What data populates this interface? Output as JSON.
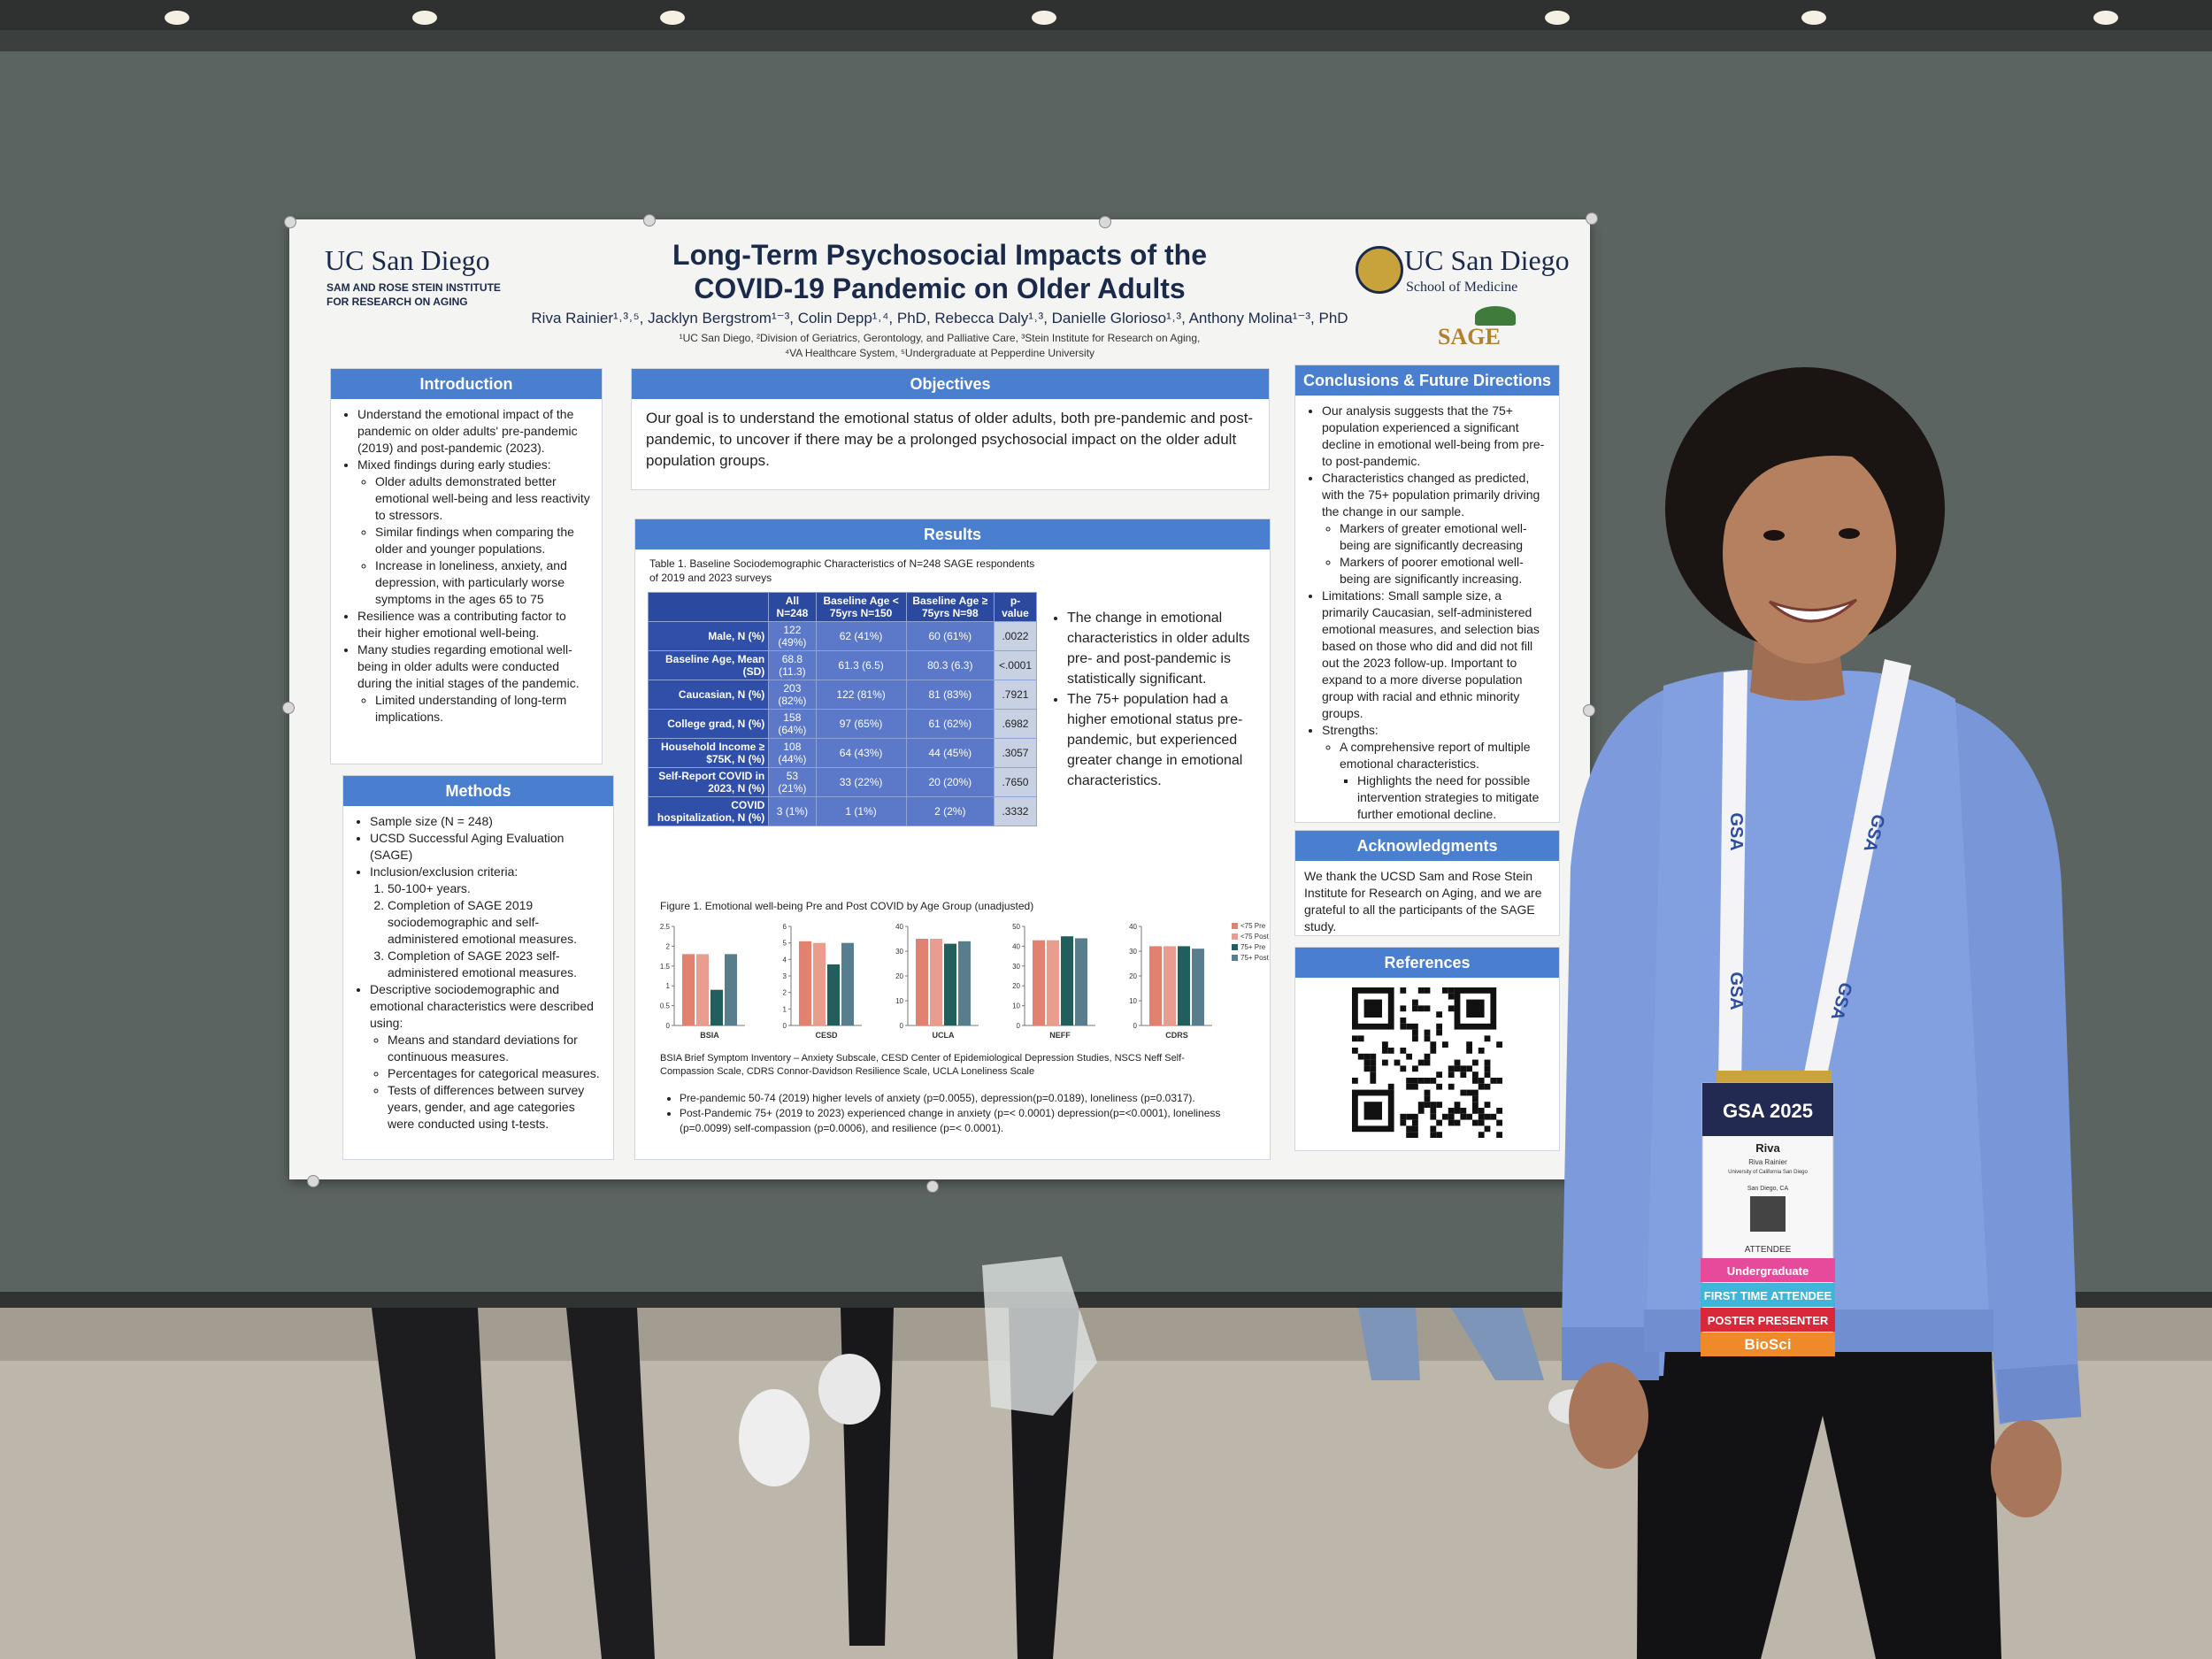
{
  "poster": {
    "logo_left": {
      "name": "UC San Diego",
      "line1": "SAM AND ROSE STEIN INSTITUTE",
      "line2": "FOR RESEARCH ON AGING"
    },
    "logo_right": {
      "name": "UC San Diego",
      "school": "School of Medicine",
      "sage": "SAGE"
    },
    "title_line1": "Long-Term Psychosocial Impacts of the",
    "title_line2": "COVID-19 Pandemic on Older Adults",
    "authors": "Riva Rainier¹˒³˒⁵, Jacklyn Bergstrom¹⁻³, Colin Depp¹˒⁴, PhD, Rebecca Daly¹˒³, Danielle Glorioso¹˒³, Anthony Molina¹⁻³, PhD",
    "affiliations1": "¹UC San Diego, ²Division of Geriatrics, Gerontology, and Palliative Care, ³Stein Institute for Research on Aging,",
    "affiliations2": "⁴VA Healthcare System, ⁵Undergraduate at Pepperdine University",
    "introduction": {
      "heading": "Introduction",
      "items": [
        {
          "text": "Understand the emotional impact of the pandemic on older adults' pre-pandemic (2019) and post-pandemic (2023)."
        },
        {
          "text": "Mixed findings during early studies:",
          "sub": [
            {
              "text": "Older adults demonstrated better emotional well-being and less reactivity to stressors."
            },
            {
              "text": "Similar findings when comparing the older and younger populations."
            },
            {
              "text": "Increase in loneliness, anxiety, and depression, with particularly worse symptoms in the ages 65 to 75"
            }
          ]
        },
        {
          "text": "Resilience was a contributing factor to their higher emotional well-being."
        },
        {
          "text": "Many studies regarding emotional well-being in older adults were conducted during the initial stages of the pandemic.",
          "sub": [
            {
              "text": "Limited understanding of long-term implications."
            }
          ]
        }
      ]
    },
    "methods": {
      "heading": "Methods",
      "items": [
        {
          "text": "Sample size (N = 248)"
        },
        {
          "text": "UCSD Successful Aging Evaluation (SAGE)"
        },
        {
          "text": "Inclusion/exclusion criteria:",
          "numbered": true,
          "sub": [
            {
              "text": "50-100+ years."
            },
            {
              "text": "Completion of SAGE 2019 sociodemographic and self-administered emotional measures."
            },
            {
              "text": "Completion of SAGE 2023 self-administered emotional measures."
            }
          ]
        },
        {
          "text": "Descriptive sociodemographic and emotional characteristics were described using:",
          "sub": [
            {
              "text": "Means and standard deviations for continuous measures."
            },
            {
              "text": "Percentages for categorical measures."
            },
            {
              "text": "Tests of differences between survey years, gender, and age categories were conducted using t-tests."
            }
          ]
        }
      ]
    },
    "objectives": {
      "heading": "Objectives",
      "text": "Our goal is to understand the emotional status of older adults, both pre-pandemic and post-pandemic, to uncover if there may be a prolonged psychosocial impact on the older adult population groups."
    },
    "results": {
      "heading": "Results",
      "table_caption": "Table 1. Baseline Sociodemographic Characteristics of N=248 SAGE respondents of 2019 and 2023 surveys",
      "table": {
        "header": [
          "",
          "All N=248",
          "Baseline Age < 75yrs N=150",
          "Baseline Age ≥ 75yrs N=98",
          "p-value"
        ],
        "rows": [
          [
            "Male, N (%)",
            "122 (49%)",
            "62 (41%)",
            "60 (61%)",
            ".0022"
          ],
          [
            "Baseline Age, Mean (SD)",
            "68.8 (11.3)",
            "61.3 (6.5)",
            "80.3 (6.3)",
            "<.0001"
          ],
          [
            "Caucasian, N (%)",
            "203 (82%)",
            "122 (81%)",
            "81 (83%)",
            ".7921"
          ],
          [
            "College grad, N (%)",
            "158 (64%)",
            "97 (65%)",
            "61 (62%)",
            ".6982"
          ],
          [
            "Household Income ≥ $75K, N (%)",
            "108 (44%)",
            "64 (43%)",
            "44 (45%)",
            ".3057"
          ],
          [
            "Self-Report COVID in 2023, N (%)",
            "53 (21%)",
            "33 (22%)",
            "20 (20%)",
            ".7650"
          ],
          [
            "COVID hospitalization, N (%)",
            "3 (1%)",
            "1 (1%)",
            "2 (2%)",
            ".3332"
          ]
        ]
      },
      "side_points": [
        "The change in emotional characteristics in older adults pre- and post-pandemic is statistically significant.",
        "The 75+ population had a higher emotional status pre-pandemic, but experienced greater change in emotional characteristics."
      ],
      "figure_caption": "Figure 1. Emotional well-being Pre and Post COVID by Age Group (unadjusted)",
      "figure": {
        "type": "bar",
        "series": [
          {
            "name": "<75 Pre",
            "color": "#e0826f"
          },
          {
            "name": "<75 Post",
            "color": "#e99d8e"
          },
          {
            "name": "75+ Pre",
            "color": "#215e5c"
          },
          {
            "name": "75+ Post",
            "color": "#587d8c"
          }
        ],
        "panels": [
          {
            "label": "BSIA",
            "ylim": [
              0,
              2.5
            ],
            "yticks": [
              0,
              0.5,
              1,
              1.5,
              2,
              2.5
            ],
            "values": [
              1.8,
              1.8,
              0.9,
              1.8
            ]
          },
          {
            "label": "CESD",
            "ylim": [
              0,
              6
            ],
            "yticks": [
              0,
              1,
              2,
              3,
              4,
              5,
              6
            ],
            "values": [
              5.1,
              5.0,
              3.7,
              5.0
            ]
          },
          {
            "label": "UCLA",
            "ylim": [
              0,
              40
            ],
            "yticks": [
              0,
              10,
              20,
              30,
              40
            ],
            "values": [
              35,
              35,
              33,
              34
            ]
          },
          {
            "label": "NEFF",
            "ylim": [
              0,
              50
            ],
            "yticks": [
              0,
              10,
              20,
              30,
              40,
              50
            ],
            "values": [
              43,
              43,
              45,
              44
            ]
          },
          {
            "label": "CDRS",
            "ylim": [
              0,
              40
            ],
            "yticks": [
              0,
              10,
              20,
              30,
              40
            ],
            "values": [
              32,
              32,
              32,
              31
            ]
          }
        ]
      },
      "abbreviations": "BSIA Brief Symptom Inventory – Anxiety Subscale, CESD Center of Epidemiological Depression Studies, NSCS Neff Self-Compassion Scale, CDRS Connor-Davidson Resilience Scale, UCLA Loneliness Scale",
      "findings": [
        "Pre-pandemic 50-74 (2019) higher levels of anxiety (p=0.0055), depression(p=0.0189), loneliness (p=0.0317).",
        "Post-Pandemic 75+ (2019 to 2023) experienced change in anxiety (p=< 0.0001) depression(p=<0.0001), loneliness (p=0.0099) self-compassion (p=0.0006), and resilience (p=< 0.0001)."
      ]
    },
    "conclusions": {
      "heading": "Conclusions & Future Directions",
      "items": [
        {
          "text": "Our analysis suggests that the 75+ population experienced a significant decline in emotional well-being from pre- to post-pandemic."
        },
        {
          "text": "Characteristics changed as predicted, with the 75+ population primarily driving the change in our sample.",
          "sub": [
            {
              "text": "Markers of greater emotional well-being are significantly decreasing"
            },
            {
              "text": "Markers of poorer emotional well-being are significantly increasing."
            }
          ]
        },
        {
          "text": "Limitations: Small sample size, a primarily Caucasian, self-administered emotional measures, and selection bias based on those who did and did not fill out the 2023 follow-up. Important to expand to a more diverse population group with racial and ethnic minority groups."
        },
        {
          "text": "Strengths:",
          "sub": [
            {
              "text": "A comprehensive report of multiple emotional characteristics.",
              "sub": [
                {
                  "text": "Highlights the need for possible intervention strategies to mitigate further emotional decline."
                }
              ]
            }
          ]
        }
      ]
    },
    "acknowledgments": {
      "heading": "Acknowledgments",
      "text": "We thank the UCSD Sam and Rose Stein Institute for Research on Aging, and we are grateful to all the participants of the SAGE study."
    },
    "references": {
      "heading": "References"
    }
  },
  "badge": {
    "event": "GSA 2025",
    "first_name": "Riva",
    "full_name": "Riva Rainier",
    "institution": "University of California San Diego",
    "location": "San Diego, CA",
    "role": "ATTENDEE",
    "ribbons": [
      {
        "text": "Undergraduate",
        "color": "#e84a9b"
      },
      {
        "text": "FIRST TIME ATTENDEE",
        "color": "#3fb6d9"
      },
      {
        "text": "POSTER PRESENTER",
        "color": "#d8283a"
      },
      {
        "text": "BioSci",
        "color": "#ef8a2a"
      }
    ],
    "lanyard": "GSA"
  }
}
